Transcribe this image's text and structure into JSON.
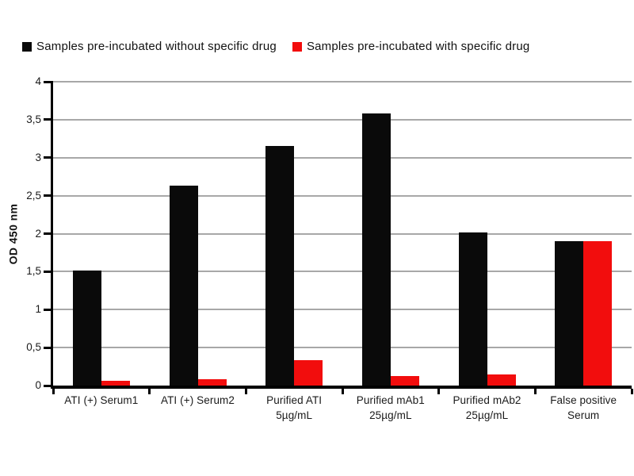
{
  "legend": {
    "items": [
      {
        "label": "Samples pre-incubated without specific drug",
        "color": "#0a0a0a"
      },
      {
        "label": "Samples pre-incubated with specific drug",
        "color": "#f20d0d"
      }
    ]
  },
  "chart_data": {
    "type": "bar",
    "title": "",
    "xlabel": "",
    "ylabel": "OD 450 nm",
    "ylim": [
      0,
      4
    ],
    "ytick_step": 0.5,
    "ytick_labels": [
      "0",
      "0,5",
      "1",
      "1,5",
      "2",
      "2,5",
      "3",
      "3,5",
      "4"
    ],
    "decimal_separator": ",",
    "grid": true,
    "legend_position": "top",
    "categories": [
      "ATI (+) Serum1",
      "ATI (+) Serum2",
      "Purified ATI 5µg/mL",
      "Purified mAb1 25µg/mL",
      "Purified mAb2 25µg/mL",
      "False positive Serum"
    ],
    "category_lines": [
      [
        "ATI (+) Serum1"
      ],
      [
        "ATI (+) Serum2"
      ],
      [
        "Purified ATI",
        "5µg/mL"
      ],
      [
        "Purified mAb1",
        "25µg/mL"
      ],
      [
        "Purified mAb2",
        "25µg/mL"
      ],
      [
        "False positive",
        "Serum"
      ]
    ],
    "series": [
      {
        "name": "Samples pre-incubated without specific drug",
        "color": "#0a0a0a",
        "values": [
          1.51,
          2.63,
          3.15,
          3.58,
          2.02,
          1.9
        ]
      },
      {
        "name": "Samples pre-incubated with specific drug",
        "color": "#f20d0d",
        "values": [
          0.06,
          0.08,
          0.33,
          0.13,
          0.15,
          1.9
        ]
      }
    ],
    "colors": {
      "gridline": "#a8a8a8",
      "axis": "#000000",
      "text": "#1a1a1a",
      "background": "#ffffff"
    }
  }
}
